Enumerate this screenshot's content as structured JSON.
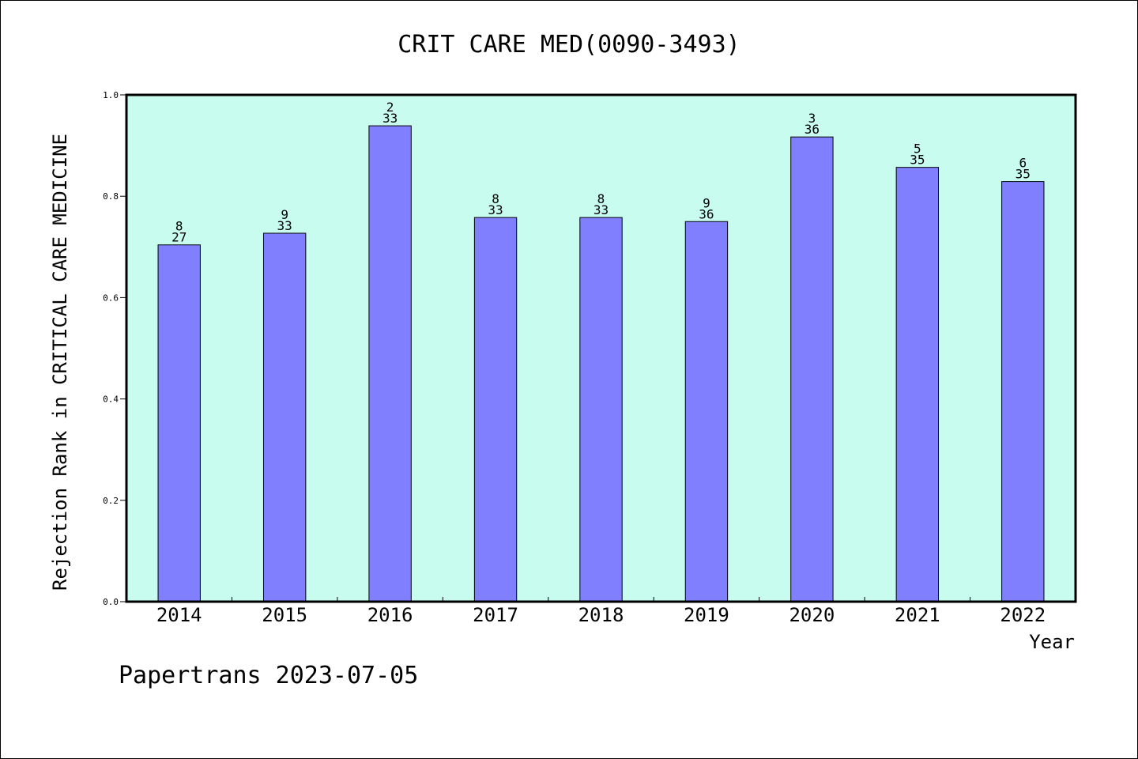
{
  "chart_data": {
    "type": "bar",
    "title": "CRIT CARE MED(0090-3493)",
    "xlabel": "Year",
    "ylabel": "Rejection Rank in CRITICAL CARE MEDICINE",
    "ylim": [
      0,
      1.0
    ],
    "yticks": [
      "0.0",
      "0.2",
      "0.4",
      "0.6",
      "0.8",
      "1.0"
    ],
    "grid": false,
    "categories": [
      "2014",
      "2015",
      "2016",
      "2017",
      "2018",
      "2019",
      "2020",
      "2021",
      "2022"
    ],
    "series": [
      {
        "values": [
          0.704,
          0.727,
          0.939,
          0.758,
          0.758,
          0.75,
          0.917,
          0.857,
          0.829
        ],
        "rank": [
          "8",
          "9",
          "2",
          "8",
          "8",
          "9",
          "3",
          "5",
          "6"
        ],
        "total": [
          "27",
          "33",
          "33",
          "33",
          "33",
          "36",
          "36",
          "35",
          "35"
        ]
      }
    ],
    "colors": {
      "plot_background": "#c8fcee",
      "bar": "#8080ff",
      "bar_edge": "#000000"
    }
  },
  "footer": {
    "text": "Papertrans 2023-07-05"
  }
}
